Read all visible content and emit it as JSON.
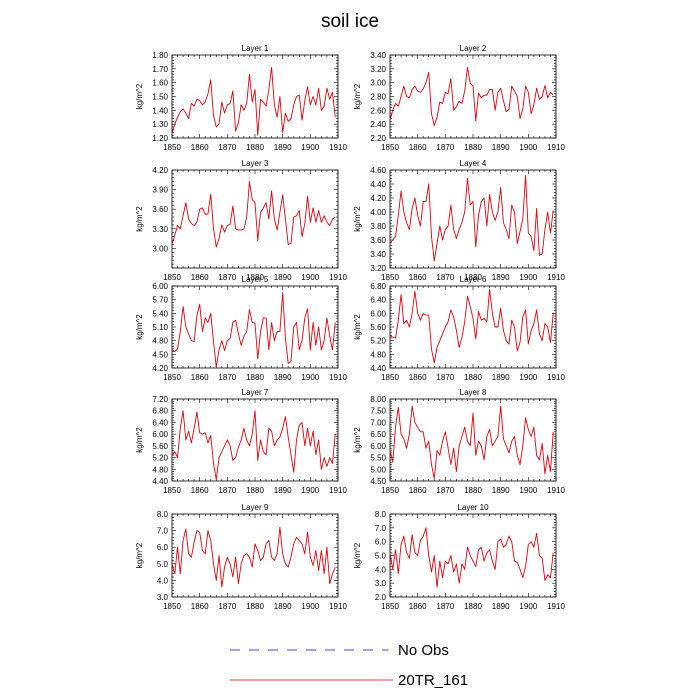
{
  "figure": {
    "title": "soil ice",
    "legend": [
      {
        "label": "No Obs",
        "style": "dashed",
        "color": "#4a4ad0"
      },
      {
        "label": "20TR_161",
        "style": "solid",
        "color": "#e8000b"
      }
    ]
  },
  "chart_data": [
    {
      "type": "line",
      "title": "Layer 1",
      "ylabel": "kg/m^2",
      "xlim": [
        1850,
        1910
      ],
      "ylim": [
        1.2,
        1.8
      ],
      "xticks": [
        "1850",
        "1860",
        "1870",
        "1880",
        "1890",
        "1900",
        "1910"
      ],
      "yticks": [
        "1.20",
        "1.30",
        "1.40",
        "1.50",
        "1.60",
        "1.70",
        "1.80"
      ],
      "x_start": 1850,
      "series": [
        {
          "color": "#e8000b",
          "values": [
            1.23,
            1.3,
            1.35,
            1.39,
            1.41,
            1.38,
            1.34,
            1.45,
            1.43,
            1.48,
            1.47,
            1.44,
            1.46,
            1.52,
            1.62,
            1.36,
            1.28,
            1.3,
            1.46,
            1.38,
            1.44,
            1.45,
            1.54,
            1.25,
            1.31,
            1.44,
            1.4,
            1.45,
            1.66,
            1.46,
            1.55,
            1.22,
            1.48,
            1.46,
            1.43,
            1.55,
            1.71,
            1.44,
            1.35,
            1.5,
            1.24,
            1.38,
            1.32,
            1.34,
            1.44,
            1.5,
            1.51,
            1.33,
            1.47,
            1.57,
            1.44,
            1.5,
            1.44,
            1.56,
            1.4,
            1.43,
            1.56,
            1.48,
            1.53,
            1.35
          ]
        }
      ]
    },
    {
      "type": "line",
      "title": "Layer 2",
      "ylabel": "kg/m^2",
      "xlim": [
        1850,
        1910
      ],
      "ylim": [
        2.2,
        3.4
      ],
      "xticks": [
        "1850",
        "1860",
        "1870",
        "1880",
        "1890",
        "1900",
        "1910"
      ],
      "yticks": [
        "2.20",
        "2.40",
        "2.60",
        "2.80",
        "3.00",
        "3.20",
        "3.40"
      ],
      "x_start": 1850,
      "series": [
        {
          "color": "#e8000b",
          "values": [
            2.46,
            2.6,
            2.7,
            2.66,
            2.8,
            2.95,
            2.8,
            2.78,
            2.9,
            2.95,
            2.88,
            2.86,
            2.91,
            3.0,
            3.15,
            2.55,
            2.38,
            2.5,
            2.72,
            2.7,
            2.86,
            2.84,
            3.06,
            2.6,
            2.65,
            2.73,
            2.7,
            2.88,
            3.22,
            2.99,
            2.95,
            2.45,
            2.85,
            2.78,
            2.82,
            2.82,
            2.9,
            2.9,
            2.6,
            2.86,
            2.92,
            2.74,
            2.58,
            2.61,
            2.95,
            2.88,
            2.8,
            2.48,
            2.62,
            2.95,
            2.86,
            2.55,
            2.68,
            2.92,
            2.76,
            2.8,
            2.96,
            2.78,
            2.86,
            2.82
          ]
        }
      ]
    },
    {
      "type": "line",
      "title": "Layer 3",
      "ylabel": "kg/m^2",
      "xlim": [
        1850,
        1910
      ],
      "ylim": [
        2.7,
        4.2
      ],
      "xticks": [
        "1850",
        "1860",
        "1870",
        "1880",
        "1890",
        "1900",
        "1910"
      ],
      "yticks": [
        "3.00",
        "3.30",
        "3.60",
        "3.90",
        "4.20"
      ],
      "x_start": 1850,
      "series": [
        {
          "color": "#e8000b",
          "values": [
            3.06,
            3.2,
            3.35,
            3.3,
            3.5,
            3.7,
            3.45,
            3.38,
            3.35,
            3.4,
            3.6,
            3.62,
            3.52,
            3.53,
            3.83,
            3.3,
            3.02,
            3.15,
            3.36,
            3.25,
            3.35,
            3.37,
            3.65,
            3.3,
            3.28,
            3.28,
            3.3,
            3.48,
            4.02,
            3.75,
            3.7,
            3.12,
            3.55,
            3.62,
            3.7,
            3.45,
            3.88,
            3.45,
            3.28,
            3.55,
            3.82,
            3.45,
            3.06,
            3.08,
            3.48,
            3.5,
            3.58,
            3.18,
            3.38,
            3.8,
            3.4,
            3.62,
            3.4,
            3.58,
            3.4,
            3.5,
            3.4,
            3.35,
            3.45,
            3.48
          ]
        }
      ]
    },
    {
      "type": "line",
      "title": "Layer 4",
      "ylabel": "kg/m^2",
      "xlim": [
        1850,
        1910
      ],
      "ylim": [
        3.2,
        4.6
      ],
      "xticks": [
        "1850",
        "1860",
        "1870",
        "1880",
        "1890",
        "1900",
        "1910"
      ],
      "yticks": [
        "3.20",
        "3.40",
        "3.60",
        "3.80",
        "4.00",
        "4.20",
        "4.40",
        "4.60"
      ],
      "x_start": 1850,
      "series": [
        {
          "color": "#e8000b",
          "values": [
            3.55,
            3.6,
            3.65,
            3.95,
            4.3,
            4.0,
            3.85,
            3.75,
            4.05,
            4.2,
            3.95,
            3.8,
            4.15,
            4.15,
            4.4,
            3.65,
            3.3,
            3.55,
            3.8,
            3.6,
            3.75,
            3.8,
            4.1,
            3.75,
            3.62,
            3.75,
            3.85,
            4.0,
            4.48,
            4.1,
            4.15,
            3.5,
            3.95,
            4.15,
            4.2,
            3.8,
            4.25,
            4.0,
            3.88,
            4.0,
            4.35,
            3.85,
            3.75,
            3.62,
            4.1,
            4.0,
            3.55,
            3.72,
            3.9,
            4.52,
            3.7,
            3.65,
            3.45,
            4.05,
            3.38,
            3.4,
            3.75,
            4.0,
            3.7,
            4.02
          ]
        }
      ]
    },
    {
      "type": "line",
      "title": "Layer 5",
      "ylabel": "kg/m^2",
      "xlim": [
        1850,
        1910
      ],
      "ylim": [
        4.2,
        6.0
      ],
      "xticks": [
        "1850",
        "1860",
        "1870",
        "1880",
        "1890",
        "1900",
        "1910"
      ],
      "yticks": [
        "4.20",
        "4.50",
        "4.80",
        "5.10",
        "5.40",
        "5.70",
        "6.00"
      ],
      "x_start": 1850,
      "series": [
        {
          "color": "#e8000b",
          "values": [
            4.6,
            4.56,
            4.62,
            5.0,
            5.55,
            5.1,
            4.95,
            4.8,
            4.78,
            5.35,
            5.6,
            5.0,
            5.3,
            5.2,
            5.4,
            4.78,
            4.22,
            4.6,
            4.8,
            4.58,
            4.8,
            4.85,
            5.2,
            5.25,
            4.95,
            4.7,
            4.9,
            5.0,
            5.48,
            5.2,
            5.18,
            4.4,
            5.0,
            5.3,
            5.3,
            4.6,
            5.2,
            4.8,
            5.0,
            5.0,
            5.85,
            4.85,
            4.3,
            4.35,
            5.1,
            5.2,
            4.6,
            4.8,
            5.3,
            5.5,
            4.6,
            5.2,
            4.7,
            5.1,
            4.6,
            4.8,
            5.3,
            4.9,
            4.6,
            5.2
          ]
        }
      ]
    },
    {
      "type": "line",
      "title": "Layer 6",
      "ylabel": "kg/m^2",
      "xlim": [
        1850,
        1910
      ],
      "ylim": [
        4.4,
        6.8
      ],
      "xticks": [
        "1850",
        "1860",
        "1870",
        "1880",
        "1890",
        "1900",
        "1910"
      ],
      "yticks": [
        "4.40",
        "4.80",
        "5.20",
        "5.60",
        "6.00",
        "6.40",
        "6.80"
      ],
      "x_start": 1850,
      "series": [
        {
          "color": "#e8000b",
          "values": [
            5.35,
            5.3,
            5.28,
            5.8,
            6.55,
            5.7,
            5.8,
            5.6,
            6.0,
            6.65,
            6.0,
            5.8,
            6.0,
            5.95,
            5.95,
            4.95,
            4.55,
            5.0,
            5.2,
            5.4,
            5.6,
            5.75,
            6.1,
            5.9,
            5.5,
            5.0,
            5.3,
            5.75,
            6.5,
            6.2,
            5.85,
            5.25,
            6.05,
            5.8,
            5.85,
            5.75,
            6.7,
            6.0,
            5.6,
            5.6,
            6.15,
            5.5,
            5.2,
            5.1,
            5.8,
            5.6,
            4.9,
            5.15,
            5.9,
            6.1,
            5.1,
            5.5,
            5.7,
            6.1,
            5.4,
            5.2,
            5.7,
            5.6,
            5.15,
            6.0
          ]
        }
      ]
    },
    {
      "type": "line",
      "title": "Layer 7",
      "ylabel": "kg/m^2",
      "xlim": [
        1850,
        1910
      ],
      "ylim": [
        4.4,
        7.2
      ],
      "xticks": [
        "1850",
        "1860",
        "1870",
        "1880",
        "1890",
        "1900",
        "1910"
      ],
      "yticks": [
        "4.40",
        "4.80",
        "5.20",
        "5.60",
        "6.00",
        "6.40",
        "6.80",
        "7.20"
      ],
      "x_start": 1850,
      "series": [
        {
          "color": "#e8000b",
          "values": [
            5.25,
            5.4,
            5.2,
            6.2,
            6.8,
            5.8,
            6.1,
            5.7,
            6.2,
            6.75,
            6.05,
            6.0,
            6.05,
            5.7,
            5.95,
            5.0,
            4.45,
            5.2,
            5.4,
            5.6,
            5.8,
            5.6,
            5.1,
            5.2,
            5.55,
            5.8,
            6.2,
            5.8,
            5.6,
            6.0,
            6.8,
            5.1,
            5.8,
            5.4,
            5.3,
            6.2,
            6.1,
            5.6,
            5.8,
            5.9,
            6.2,
            6.6,
            5.9,
            5.3,
            4.7,
            5.8,
            6.3,
            6.4,
            5.6,
            6.2,
            5.6,
            6.1,
            5.3,
            5.8,
            4.8,
            5.2,
            4.9,
            5.2,
            5.0,
            6.0
          ]
        }
      ]
    },
    {
      "type": "line",
      "title": "Layer 8",
      "ylabel": "kg/m^2",
      "xlim": [
        1850,
        1910
      ],
      "ylim": [
        4.5,
        8.0
      ],
      "xticks": [
        "1850",
        "1860",
        "1870",
        "1880",
        "1890",
        "1900",
        "1910"
      ],
      "yticks": [
        "4.50",
        "5.00",
        "5.50",
        "6.00",
        "6.50",
        "7.00",
        "7.50",
        "8.00"
      ],
      "x_start": 1850,
      "series": [
        {
          "color": "#e8000b",
          "values": [
            5.8,
            5.3,
            6.8,
            7.65,
            6.5,
            6.3,
            5.9,
            6.5,
            7.7,
            7.0,
            6.8,
            6.6,
            6.6,
            5.9,
            6.2,
            5.2,
            4.6,
            5.8,
            5.6,
            6.2,
            6.6,
            5.9,
            5.2,
            5.9,
            4.9,
            6.0,
            6.4,
            6.8,
            6.2,
            6.0,
            7.4,
            5.6,
            6.2,
            6.0,
            5.4,
            6.4,
            6.7,
            6.0,
            6.2,
            6.4,
            7.7,
            6.3,
            6.0,
            5.7,
            6.2,
            6.4,
            5.6,
            5.2,
            6.0,
            7.2,
            6.7,
            6.4,
            6.8,
            5.6,
            5.4,
            6.1,
            4.8,
            5.6,
            4.9,
            6.6
          ]
        }
      ]
    },
    {
      "type": "line",
      "title": "Layer 9",
      "ylabel": "kg/m^2",
      "xlim": [
        1850,
        1910
      ],
      "ylim": [
        3.0,
        8.0
      ],
      "xticks": [
        "1850",
        "1860",
        "1870",
        "1880",
        "1890",
        "1900",
        "1910"
      ],
      "yticks": [
        "3.0",
        "4.0",
        "5.0",
        "6.0",
        "7.0",
        "8.0"
      ],
      "x_start": 1850,
      "series": [
        {
          "color": "#e8000b",
          "values": [
            5.0,
            4.4,
            6.0,
            4.4,
            6.4,
            7.1,
            5.6,
            5.4,
            6.3,
            7.0,
            6.9,
            5.8,
            5.6,
            7.0,
            6.4,
            5.0,
            4.0,
            5.5,
            3.6,
            4.8,
            5.4,
            5.0,
            4.2,
            5.4,
            3.8,
            5.0,
            5.5,
            5.6,
            5.4,
            4.8,
            6.2,
            5.8,
            5.2,
            5.4,
            6.2,
            6.4,
            5.4,
            5.2,
            5.6,
            7.2,
            5.6,
            5.0,
            4.8,
            5.4,
            6.2,
            6.6,
            6.4,
            6.2,
            5.6,
            6.9,
            5.4,
            4.9,
            5.8,
            4.6,
            5.8,
            4.4,
            6.0,
            3.8,
            4.4,
            4.8
          ]
        }
      ]
    },
    {
      "type": "line",
      "title": "Layer 10",
      "ylabel": "kg/m^2",
      "xlim": [
        1850,
        1910
      ],
      "ylim": [
        2.0,
        8.0
      ],
      "xticks": [
        "1850",
        "1860",
        "1870",
        "1880",
        "1890",
        "1900",
        "1910"
      ],
      "yticks": [
        "2.0",
        "3.0",
        "4.0",
        "5.0",
        "6.0",
        "7.0",
        "8.0"
      ],
      "x_start": 1850,
      "series": [
        {
          "color": "#e8000b",
          "values": [
            5.2,
            4.0,
            5.4,
            3.7,
            5.8,
            6.4,
            5.2,
            4.8,
            6.5,
            5.2,
            5.0,
            6.1,
            6.4,
            7.0,
            5.0,
            3.8,
            5.0,
            2.7,
            4.6,
            3.4,
            4.6,
            4.4,
            5.0,
            3.8,
            4.4,
            3.0,
            4.4,
            4.0,
            5.6,
            5.0,
            4.6,
            4.2,
            5.4,
            5.6,
            4.6,
            5.2,
            5.4,
            4.6,
            4.0,
            6.0,
            6.2,
            5.6,
            5.8,
            6.4,
            6.0,
            4.6,
            4.5,
            4.0,
            3.4,
            4.2,
            5.8,
            6.0,
            5.6,
            6.6,
            5.0,
            4.8,
            3.2,
            3.6,
            3.4,
            5.2
          ]
        }
      ]
    }
  ]
}
